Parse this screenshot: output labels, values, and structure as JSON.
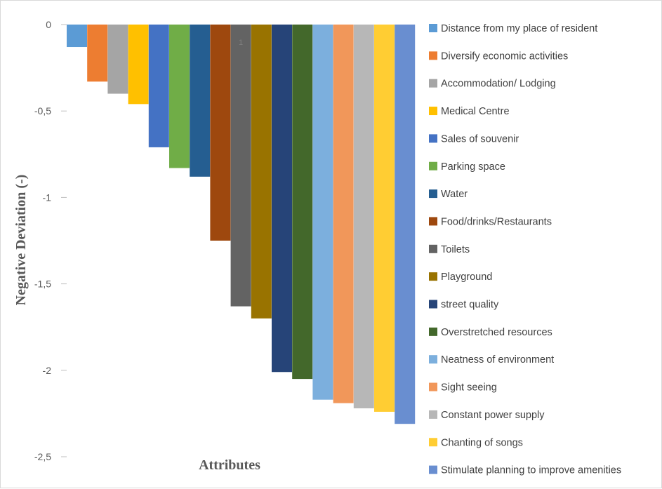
{
  "chart_data": {
    "type": "bar",
    "xlabel": "Attributes",
    "ylabel": "Negative Deviation (-)",
    "ylim": [
      -2.5,
      0
    ],
    "yticks": [
      0,
      -0.5,
      -1,
      -1.5,
      -2,
      -2.5
    ],
    "ytick_labels": [
      "0",
      "-0,5",
      "-1",
      "-1,5",
      "-2",
      "-2,5"
    ],
    "annotation": "1",
    "legend_position": "right",
    "grid": false,
    "series": [
      {
        "name": "Distance from my place of resident",
        "value": -0.13,
        "color": "#5B9BD5"
      },
      {
        "name": "Diversify economic activities",
        "value": -0.33,
        "color": "#ED7D31"
      },
      {
        "name": "Accommodation/ Lodging",
        "value": -0.4,
        "color": "#A5A5A5"
      },
      {
        "name": "Medical Centre",
        "value": -0.46,
        "color": "#FFC000"
      },
      {
        "name": "Sales of souvenir",
        "value": -0.71,
        "color": "#4472C4"
      },
      {
        "name": "Parking space",
        "value": -0.83,
        "color": "#70AD47"
      },
      {
        "name": "Water",
        "value": -0.88,
        "color": "#255E91"
      },
      {
        "name": "Food/drinks/Restaurants",
        "value": -1.25,
        "color": "#9E480E"
      },
      {
        "name": "Toilets",
        "value": -1.63,
        "color": "#636363"
      },
      {
        "name": "Playground",
        "value": -1.7,
        "color": "#997300"
      },
      {
        "name": "street quality",
        "value": -2.01,
        "color": "#264478"
      },
      {
        "name": "Overstretched resources",
        "value": -2.05,
        "color": "#43682B"
      },
      {
        "name": "Neatness of environment",
        "value": -2.17,
        "color": "#7CAFDD"
      },
      {
        "name": "Sight seeing",
        "value": -2.19,
        "color": "#F1975A"
      },
      {
        "name": "Constant power supply",
        "value": -2.22,
        "color": "#B7B7B7"
      },
      {
        "name": "Chanting of songs",
        "value": -2.24,
        "color": "#FFCD33"
      },
      {
        "name": "Stimulate planning to improve amenities",
        "value": -2.31,
        "color": "#698ED0"
      }
    ]
  }
}
